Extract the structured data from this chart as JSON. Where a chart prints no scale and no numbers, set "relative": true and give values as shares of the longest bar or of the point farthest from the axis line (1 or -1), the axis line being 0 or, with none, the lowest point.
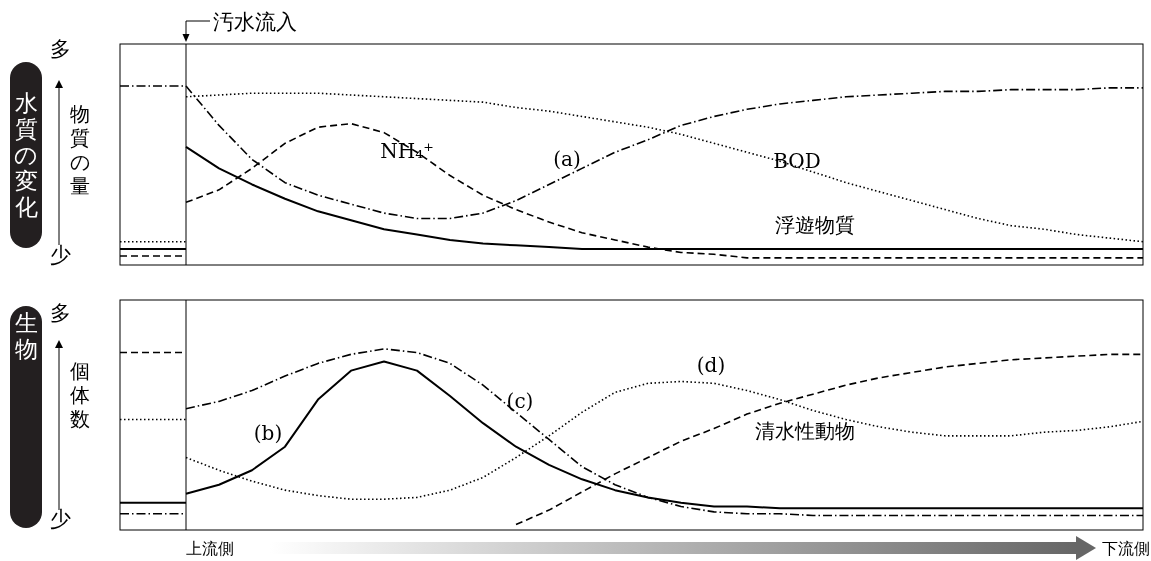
{
  "chart_data": [
    {
      "type": "line",
      "title": "水質の変化",
      "ylabel": "物質の量",
      "relative": true,
      "categories": [
        null,
        null,
        null,
        null,
        null,
        null,
        null,
        null,
        null,
        null,
        null,
        null,
        null,
        null,
        null,
        null,
        null,
        null,
        null,
        null,
        null,
        null,
        null,
        null,
        null,
        null,
        null,
        null,
        null,
        null,
        null,
        null
      ],
      "series": [
        {
          "name": "(a)",
          "color": "#000000",
          "line_style": "dashdot",
          "values": [
            null,
            null,
            1.0,
            0.78,
            0.59,
            0.46,
            0.39,
            0.34,
            0.29,
            0.26,
            0.26,
            0.29,
            0.36,
            0.45,
            0.54,
            0.63,
            0.7,
            0.78,
            0.83,
            0.87,
            0.9,
            0.92,
            0.94,
            0.95,
            0.96,
            0.97,
            0.97,
            0.98,
            0.98,
            0.98,
            0.99,
            0.99
          ]
        },
        {
          "color": "#000000",
          "line_style": "dashdot",
          "values": [
            1.0,
            1.0,
            1.0,
            null,
            null,
            null,
            null,
            null,
            null,
            null,
            null,
            null,
            null,
            null,
            null,
            null,
            null,
            null,
            null,
            null,
            null,
            null,
            null,
            null,
            null,
            null,
            null,
            null,
            null,
            null,
            null,
            null
          ]
        },
        {
          "name": "BOD",
          "color": "#000000",
          "line_style": "dotted",
          "values": [
            null,
            null,
            0.94,
            0.95,
            0.96,
            0.96,
            0.96,
            0.95,
            0.94,
            0.93,
            0.92,
            0.91,
            0.88,
            0.86,
            0.83,
            0.8,
            0.77,
            0.73,
            0.68,
            0.63,
            0.58,
            0.52,
            0.46,
            0.41,
            0.36,
            0.31,
            0.26,
            0.22,
            0.2,
            0.17,
            0.15,
            0.13
          ]
        },
        {
          "color": "#000000",
          "line_style": "dotted",
          "values": [
            0.13,
            0.13,
            0.13,
            null,
            null,
            null,
            null,
            null,
            null,
            null,
            null,
            null,
            null,
            null,
            null,
            null,
            null,
            null,
            null,
            null,
            null,
            null,
            null,
            null,
            null,
            null,
            null,
            null,
            null,
            null,
            null,
            null
          ]
        },
        {
          "name": "NH₄⁺",
          "color": "#000000",
          "line_style": "dashed",
          "values": [
            null,
            null,
            0.35,
            0.42,
            0.54,
            0.68,
            0.77,
            0.79,
            0.74,
            0.63,
            0.5,
            0.39,
            0.31,
            0.24,
            0.18,
            0.14,
            0.1,
            0.07,
            0.06,
            0.04,
            0.04,
            0.04,
            0.04,
            0.04,
            0.04,
            0.04,
            0.04,
            0.04,
            0.04,
            0.04,
            0.04,
            0.04
          ]
        },
        {
          "color": "#000000",
          "line_style": "dashed",
          "values": [
            0.05,
            0.05,
            0.05,
            null,
            null,
            null,
            null,
            null,
            null,
            null,
            null,
            null,
            null,
            null,
            null,
            null,
            null,
            null,
            null,
            null,
            null,
            null,
            null,
            null,
            null,
            null,
            null,
            null,
            null,
            null,
            null,
            null
          ]
        },
        {
          "name": "浮遊物質",
          "color": "#000000",
          "line_style": "solid",
          "values": [
            null,
            null,
            0.66,
            0.54,
            0.45,
            0.37,
            0.3,
            0.25,
            0.2,
            0.17,
            0.14,
            0.12,
            0.11,
            0.1,
            0.09,
            0.09,
            0.09,
            0.09,
            0.09,
            0.09,
            0.09,
            0.09,
            0.09,
            0.09,
            0.09,
            0.09,
            0.09,
            0.09,
            0.09,
            0.09,
            0.09,
            0.09
          ]
        },
        {
          "color": "#000000",
          "line_style": "solid",
          "values": [
            0.09,
            0.09,
            0.09,
            null,
            null,
            null,
            null,
            null,
            null,
            null,
            null,
            null,
            null,
            null,
            null,
            null,
            null,
            null,
            null,
            null,
            null,
            null,
            null,
            null,
            null,
            null,
            null,
            null,
            null,
            null,
            null,
            null
          ]
        }
      ],
      "annotations": [
        "多",
        "少",
        "汚水流入"
      ]
    },
    {
      "type": "line",
      "title": "生物",
      "ylabel": "個体数",
      "relative": true,
      "categories": [
        null,
        null,
        null,
        null,
        null,
        null,
        null,
        null,
        null,
        null,
        null,
        null,
        null,
        null,
        null,
        null,
        null,
        null,
        null,
        null,
        null,
        null,
        null,
        null,
        null,
        null,
        null,
        null,
        null,
        null,
        null,
        null
      ],
      "series": [
        {
          "name": "(b)",
          "color": "#000000",
          "line_style": "solid",
          "values": [
            null,
            null,
            0.2,
            0.25,
            0.33,
            0.46,
            0.72,
            0.88,
            0.93,
            0.88,
            0.74,
            0.59,
            0.46,
            0.36,
            0.28,
            0.22,
            0.18,
            0.15,
            0.13,
            0.13,
            0.12,
            0.12,
            0.12,
            0.12,
            0.12,
            0.12,
            0.12,
            0.12,
            0.12,
            0.12,
            0.12,
            0.12
          ]
        },
        {
          "color": "#000000",
          "line_style": "solid",
          "values": [
            0.15,
            0.15,
            0.15,
            null,
            null,
            null,
            null,
            null,
            null,
            null,
            null,
            null,
            null,
            null,
            null,
            null,
            null,
            null,
            null,
            null,
            null,
            null,
            null,
            null,
            null,
            null,
            null,
            null,
            null,
            null,
            null,
            null
          ]
        },
        {
          "name": "(c)",
          "color": "#000000",
          "line_style": "dashdot",
          "values": [
            null,
            null,
            0.67,
            0.71,
            0.77,
            0.85,
            0.92,
            0.97,
            1.0,
            0.98,
            0.92,
            0.8,
            0.65,
            0.5,
            0.35,
            0.25,
            0.18,
            0.13,
            0.1,
            0.09,
            0.09,
            0.08,
            0.08,
            0.08,
            0.08,
            0.08,
            0.08,
            0.08,
            0.08,
            0.08,
            0.08,
            0.08
          ]
        },
        {
          "color": "#000000",
          "line_style": "dashdot",
          "values": [
            0.09,
            0.09,
            0.09,
            null,
            null,
            null,
            null,
            null,
            null,
            null,
            null,
            null,
            null,
            null,
            null,
            null,
            null,
            null,
            null,
            null,
            null,
            null,
            null,
            null,
            null,
            null,
            null,
            null,
            null,
            null,
            null,
            null
          ]
        },
        {
          "name": "(d)",
          "color": "#000000",
          "line_style": "dotted",
          "values": [
            null,
            null,
            0.4,
            0.33,
            0.27,
            0.22,
            0.19,
            0.17,
            0.17,
            0.18,
            0.22,
            0.29,
            0.4,
            0.52,
            0.65,
            0.76,
            0.81,
            0.82,
            0.81,
            0.77,
            0.72,
            0.66,
            0.61,
            0.57,
            0.54,
            0.52,
            0.52,
            0.52,
            0.54,
            0.55,
            0.57,
            0.6
          ]
        },
        {
          "color": "#000000",
          "line_style": "dotted",
          "values": [
            0.61,
            0.61,
            0.61,
            null,
            null,
            null,
            null,
            null,
            null,
            null,
            null,
            null,
            null,
            null,
            null,
            null,
            null,
            null,
            null,
            null,
            null,
            null,
            null,
            null,
            null,
            null,
            null,
            null,
            null,
            null,
            null,
            null
          ]
        },
        {
          "name": "清水性動物",
          "color": "#000000",
          "line_style": "dashed",
          "values": [
            null,
            null,
            null,
            null,
            null,
            null,
            null,
            null,
            null,
            null,
            null,
            null,
            0.03,
            0.11,
            0.21,
            0.31,
            0.4,
            0.49,
            0.56,
            0.64,
            0.7,
            0.75,
            0.8,
            0.84,
            0.87,
            0.9,
            0.92,
            0.94,
            0.95,
            0.96,
            0.97,
            0.97
          ]
        },
        {
          "color": "#000000",
          "line_style": "dashed",
          "values": [
            0.98,
            0.98,
            0.98,
            null,
            null,
            null,
            null,
            null,
            null,
            null,
            null,
            null,
            null,
            null,
            null,
            null,
            null,
            null,
            null,
            null,
            null,
            null,
            null,
            null,
            null,
            null,
            null,
            null,
            null,
            null,
            null,
            null
          ]
        }
      ],
      "annotations": [
        "多",
        "少",
        "上流側",
        "下流側"
      ]
    }
  ]
}
